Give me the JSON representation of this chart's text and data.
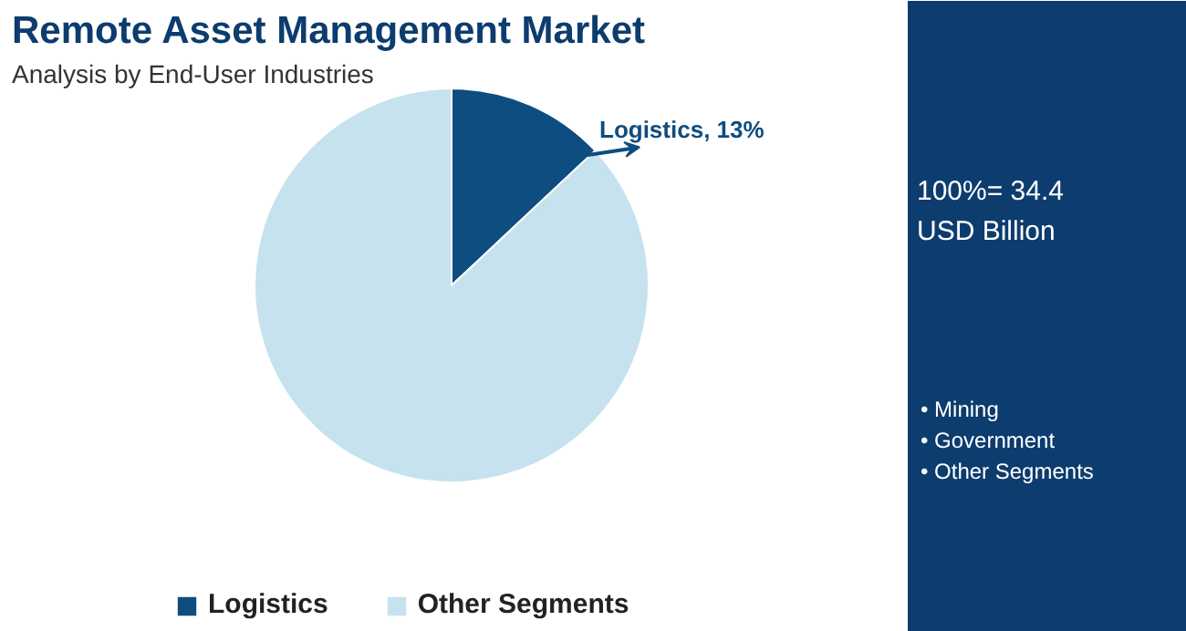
{
  "chart_data": {
    "type": "pie",
    "title": "Remote Asset Management Market",
    "subtitle": "Analysis by End-User Industries",
    "categories": [
      "Logistics",
      "Other Segments"
    ],
    "values": [
      13,
      87
    ],
    "colors": [
      "#0e4d7f",
      "#c6e2ef"
    ],
    "value_labels": [
      "Logistics, 13%",
      null
    ],
    "legend": "bottom",
    "annotations": [
      "100%= 34.4",
      "USD Billion",
      "• Mining",
      "• Government",
      "• Other Segments"
    ]
  }
}
